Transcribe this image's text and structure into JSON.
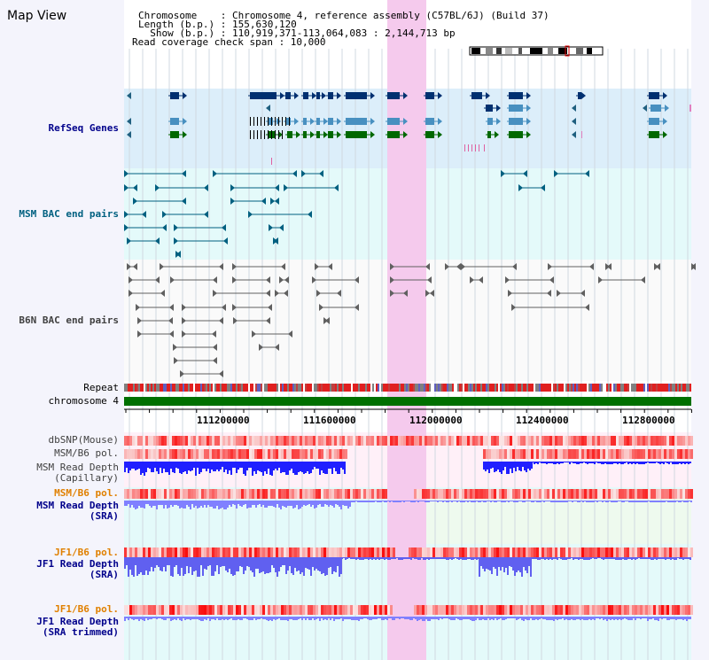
{
  "title": "Map View",
  "info": {
    "line1": "Chromosome    : Chromosome 4, reference assembly (C57BL/6J) (Build 37)",
    "line2": "Length (b.p.) : 155,630,120",
    "line3": "  Show (b.p.) : 110,919,371-113,064,083 : 2,144,713 bp",
    "line4": "Read coverage check span : 10,000"
  },
  "tracks": {
    "refseq": "RefSeq Genes",
    "msm_bac": "MSM BAC end pairs",
    "b6n_bac": "B6N BAC end pairs",
    "repeat": "Repeat",
    "chromosome": "chromosome 4",
    "dbsnp": "dbSNP(Mouse)",
    "msm_b6_pol_1": "MSM/B6 pol.",
    "msm_read_depth_cap": "MSM Read Depth",
    "msm_read_depth_cap_sub": "(Capillary)",
    "msm_b6_pol_2": "MSM/B6 pol.",
    "msm_read_depth_sra": "MSM Read Depth",
    "msm_read_depth_sra_sub": "(SRA)",
    "jf1_b6_pol_1": "JF1/B6 pol.",
    "jf1_read_depth_sra": "JF1 Read Depth",
    "jf1_read_depth_sra_sub": "(SRA)",
    "jf1_b6_pol_2": "JF1/B6 pol.",
    "jf1_read_depth_trim": "JF1 Read Depth",
    "jf1_read_depth_trim_sub": "(SRA trimmed)"
  },
  "axis": {
    "ticks": [
      "111200000",
      "111600000",
      "112000000",
      "112400000",
      "112800000"
    ]
  },
  "colors": {
    "refseq_label": "#00008b",
    "msm_label": "#006080",
    "pol_label": "#e08000",
    "depth_label": "#00008b",
    "highlight": "#f8d8f0",
    "chromosome_bar": "#007000"
  }
}
